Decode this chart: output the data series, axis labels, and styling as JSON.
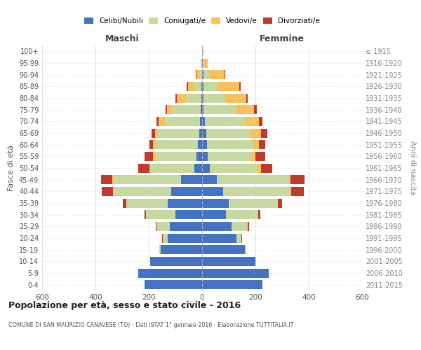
{
  "age_groups": [
    "0-4",
    "5-9",
    "10-14",
    "15-19",
    "20-24",
    "25-29",
    "30-34",
    "35-39",
    "40-44",
    "45-49",
    "50-54",
    "55-59",
    "60-64",
    "65-69",
    "70-74",
    "75-79",
    "80-84",
    "85-89",
    "90-94",
    "95-99",
    "100+"
  ],
  "birth_years": [
    "2011-2015",
    "2006-2010",
    "2001-2005",
    "1996-2000",
    "1991-1995",
    "1986-1990",
    "1981-1985",
    "1976-1980",
    "1971-1975",
    "1966-1970",
    "1961-1965",
    "1956-1960",
    "1951-1955",
    "1946-1950",
    "1941-1945",
    "1936-1940",
    "1931-1935",
    "1926-1930",
    "1921-1925",
    "1916-1920",
    "≤ 1915"
  ],
  "maschi": {
    "celibe": [
      215,
      240,
      195,
      155,
      130,
      120,
      100,
      130,
      115,
      80,
      30,
      22,
      15,
      10,
      8,
      5,
      2,
      2,
      1,
      0,
      0
    ],
    "coniugato": [
      0,
      0,
      0,
      5,
      18,
      50,
      110,
      155,
      220,
      255,
      165,
      155,
      162,
      155,
      132,
      105,
      62,
      28,
      8,
      3,
      1
    ],
    "vedovo": [
      0,
      0,
      0,
      0,
      0,
      0,
      0,
      0,
      0,
      2,
      3,
      6,
      6,
      12,
      22,
      22,
      32,
      22,
      12,
      2,
      0
    ],
    "divorziato": [
      0,
      0,
      0,
      0,
      2,
      5,
      6,
      12,
      42,
      42,
      42,
      32,
      15,
      12,
      10,
      6,
      5,
      5,
      2,
      0,
      0
    ]
  },
  "femmine": {
    "nubile": [
      225,
      250,
      200,
      160,
      130,
      110,
      90,
      100,
      80,
      55,
      28,
      20,
      18,
      15,
      10,
      5,
      5,
      5,
      4,
      2,
      0
    ],
    "coniugata": [
      0,
      0,
      0,
      5,
      18,
      60,
      120,
      185,
      252,
      272,
      182,
      165,
      172,
      165,
      152,
      122,
      82,
      52,
      22,
      5,
      2
    ],
    "vedova": [
      0,
      0,
      0,
      0,
      0,
      0,
      0,
      0,
      3,
      5,
      10,
      16,
      22,
      42,
      52,
      68,
      78,
      82,
      58,
      15,
      2
    ],
    "divorziata": [
      0,
      0,
      0,
      0,
      2,
      5,
      8,
      16,
      46,
      52,
      42,
      36,
      26,
      22,
      12,
      10,
      5,
      5,
      2,
      0,
      0
    ]
  },
  "colors": {
    "celibe": "#4472C4",
    "coniugato": "#C5D9A0",
    "vedovo": "#FAC05A",
    "divorziato": "#C0392B"
  },
  "title": "Popolazione per età, sesso e stato civile - 2016",
  "subtitle": "COMUNE DI SAN MAURIZIO CANAVESE (TO) - Dati ISTAT 1° gennaio 2016 - Elaborazione TUTTITALIA.IT",
  "ylabel_left": "Fasce di età",
  "ylabel_right": "Anni di nascita",
  "xlabel_maschi": "Maschi",
  "xlabel_femmine": "Femmine",
  "xlim": 600,
  "bg_color": "#ffffff",
  "grid_color": "#cccccc",
  "bar_height": 0.78
}
